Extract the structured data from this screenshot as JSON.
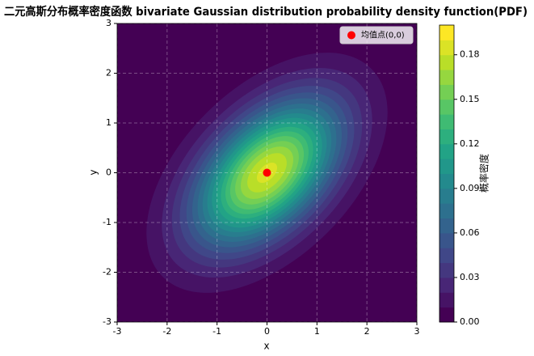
{
  "chart_data": {
    "type": "contourf",
    "title": "二元高斯分布概率密度函数 bivariate Gaussian distribution probability density function(PDF)",
    "xlabel": "x",
    "ylabel": "y",
    "xlim": [
      -3,
      3
    ],
    "ylim": [
      -3,
      3
    ],
    "xticks": [
      -3,
      -2,
      -1,
      0,
      1,
      2,
      3
    ],
    "yticks": [
      -3,
      -2,
      -1,
      0,
      1,
      2,
      3
    ],
    "grid": true,
    "colormap": "viridis",
    "covariance": [
      [
        1,
        0.5
      ],
      [
        0.5,
        1
      ]
    ],
    "levels": [
      0,
      0.01,
      0.02,
      0.03,
      0.04,
      0.05,
      0.06,
      0.07,
      0.08,
      0.09,
      0.1,
      0.11,
      0.12,
      0.13,
      0.14,
      0.15,
      0.16,
      0.17,
      0.18,
      0.19,
      0.2
    ],
    "colorbar": {
      "label": "概率密度",
      "ticks": [
        {
          "value": 0,
          "label": "0.00"
        },
        0.03,
        0.06,
        0.09,
        0.12,
        0.15,
        0.18
      ]
    },
    "series": [
      {
        "name": "均值点(0,0)",
        "color": "#ff0000",
        "x": [
          0
        ],
        "y": [
          0
        ]
      }
    ],
    "legend": "upper right"
  }
}
